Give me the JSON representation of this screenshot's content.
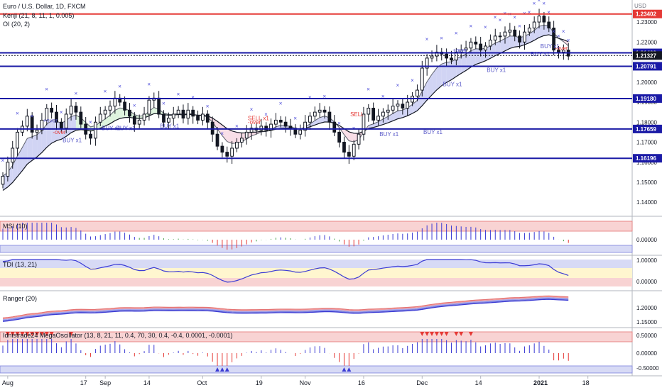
{
  "header": {
    "symbol_title": "Euro / U.S. Dollar, 1D, FXCM",
    "indicator_1": "Kenji (21, 8, 11, 1, 0.005)",
    "indicator_2": "OI (20, 2)",
    "currency": "USD"
  },
  "price_axis": {
    "ticks": [
      "1.23000",
      "1.22000",
      "1.20000",
      "1.19000",
      "1.18000",
      "1.17000",
      "1.16000",
      "1.15000",
      "1.14000"
    ],
    "ylim": [
      1.133,
      1.241
    ]
  },
  "horizontal_levels": [
    {
      "value": 1.23402,
      "label": "1.23402",
      "color": "#e53935"
    },
    {
      "value": 1.2146,
      "label": "1.21460",
      "color": "#1a1aa6"
    },
    {
      "value": 1.21327,
      "label": "1.21327",
      "color": "#131722"
    },
    {
      "value": 1.20791,
      "label": "1.20791",
      "color": "#1a1aa6"
    },
    {
      "value": 1.1918,
      "label": "1.19180",
      "color": "#1a1aa6"
    },
    {
      "value": 1.17659,
      "label": "1.17659",
      "color": "#1a1aa6"
    },
    {
      "value": 1.16196,
      "label": "1.16196",
      "color": "#1a1aa6"
    }
  ],
  "time_axis": {
    "labels": [
      "Aug",
      "17",
      "Sep",
      "14",
      "Oct",
      "19",
      "Nov",
      "16",
      "Dec",
      "14",
      "2021",
      "18"
    ]
  },
  "signal_labels": [
    "+over",
    "-over",
    "BUY x1",
    "BUY x1",
    "BUY x1",
    "BUY x1",
    "SELL x1",
    "-over",
    "SELL",
    "BUY x1",
    "BUY x1",
    "BUY x1",
    "+over",
    "BUY x1",
    "BUY x1",
    "-over",
    "BUY x1"
  ],
  "panes": {
    "msi": {
      "title": "MSI (10)",
      "ticks": [
        "0.00000"
      ]
    },
    "tdi": {
      "title": "TDI (13, 21)",
      "ticks": [
        "1.00000",
        "0.00000"
      ]
    },
    "ranger": {
      "title": "Ranger (20)",
      "ticks": [
        "1.20000",
        "1.15000"
      ]
    },
    "mega": {
      "title": "Idnistrade24 MegaOscillator (13, 8, 21, 11, 0.4, 70, 30, 0.4, -0.4, 0.0001, -0.0001)",
      "ticks": [
        "0.50000",
        "0.00000",
        "-0.50000"
      ]
    }
  },
  "colors": {
    "up_candle": "#ffffff",
    "down_candle": "#131722",
    "level_blue": "#1a1aa6",
    "level_red": "#e53935",
    "cloud_blue": "#c9cdf2",
    "cloud_green": "#d8f2d8",
    "cloud_pink": "#f7d8e3"
  },
  "chart_data": {
    "type": "candlestick",
    "xlim": [
      0,
      125
    ],
    "dates_index_note_labels": [
      1,
      17,
      21,
      30,
      41,
      53,
      62,
      74,
      86,
      98,
      110,
      120
    ],
    "closes": [
      1.153,
      1.16,
      1.167,
      1.175,
      1.178,
      1.183,
      1.175,
      1.176,
      1.181,
      1.187,
      1.185,
      1.18,
      1.177,
      1.184,
      1.188,
      1.185,
      1.179,
      1.174,
      1.172,
      1.18,
      1.184,
      1.186,
      1.188,
      1.192,
      1.19,
      1.186,
      1.183,
      1.179,
      1.181,
      1.184,
      1.191,
      1.192,
      1.184,
      1.18,
      1.182,
      1.184,
      1.186,
      1.182,
      1.186,
      1.183,
      1.181,
      1.184,
      1.18,
      1.174,
      1.168,
      1.165,
      1.163,
      1.167,
      1.17,
      1.172,
      1.175,
      1.177,
      1.176,
      1.178,
      1.176,
      1.179,
      1.181,
      1.18,
      1.178,
      1.177,
      1.174,
      1.176,
      1.18,
      1.183,
      1.185,
      1.186,
      1.185,
      1.18,
      1.175,
      1.17,
      1.165,
      1.163,
      1.169,
      1.174,
      1.184,
      1.187,
      1.181,
      1.183,
      1.185,
      1.186,
      1.188,
      1.189,
      1.187,
      1.19,
      1.193,
      1.196,
      1.207,
      1.212,
      1.213,
      1.215,
      1.214,
      1.212,
      1.211,
      1.215,
      1.216,
      1.217,
      1.22,
      1.219,
      1.216,
      1.218,
      1.221,
      1.223,
      1.223,
      1.225,
      1.226,
      1.223,
      1.22,
      1.225,
      1.227,
      1.23,
      1.233,
      1.23,
      1.227,
      1.216,
      1.215,
      1.216,
      1.213
    ],
    "ma_start": 1.145
  }
}
